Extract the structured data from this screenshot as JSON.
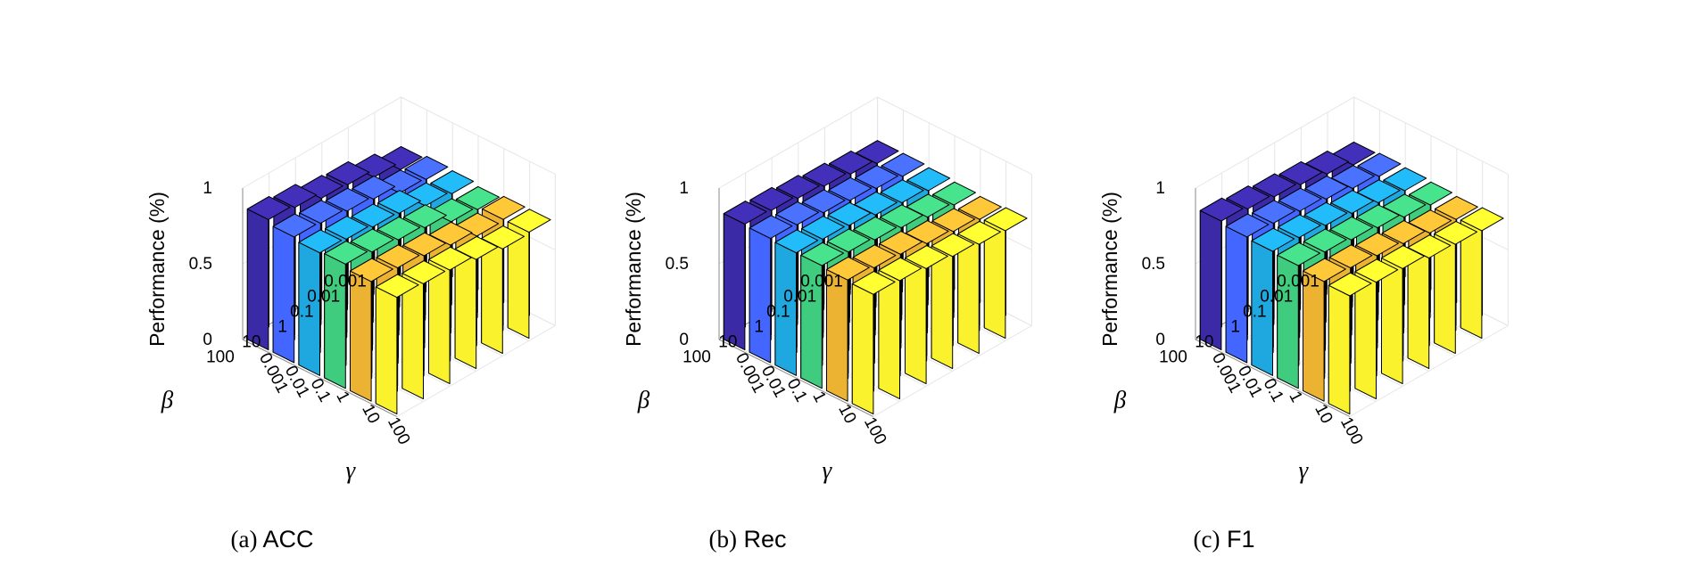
{
  "chart_data": [
    {
      "type": "bar3d",
      "caption_tag": "(a)",
      "caption_metric": "ACC",
      "zlabel": "Performance (%)",
      "zticks": [
        "0",
        "0.5",
        "1"
      ],
      "zlim": [
        0,
        1
      ],
      "x_axis_symbol": "γ",
      "y_axis_symbol": "β",
      "x_categories": [
        "0.001",
        "0.01",
        "0.1",
        "1",
        "10",
        "100"
      ],
      "y_categories": [
        "0.001",
        "0.01",
        "0.1",
        "1",
        "10",
        "100"
      ],
      "values": [
        [
          0.86,
          0.83,
          0.81,
          0.82,
          0.79,
          0.77
        ],
        [
          0.84,
          0.82,
          0.8,
          0.8,
          0.78,
          0.76
        ],
        [
          0.8,
          0.8,
          0.78,
          0.78,
          0.76,
          0.75
        ],
        [
          0.79,
          0.78,
          0.77,
          0.76,
          0.73,
          0.72
        ],
        [
          0.74,
          0.72,
          0.72,
          0.7,
          0.69,
          0.69
        ],
        [
          0.69,
          0.71,
          0.7,
          0.68,
          0.7,
          0.7
        ]
      ]
    },
    {
      "type": "bar3d",
      "caption_tag": "(b)",
      "caption_metric": "Rec",
      "zlabel": "Performance (%)",
      "zticks": [
        "0",
        "0.5",
        "1"
      ],
      "zlim": [
        0,
        1
      ],
      "x_axis_symbol": "γ",
      "y_axis_symbol": "β",
      "x_categories": [
        "0.001",
        "0.01",
        "0.1",
        "1",
        "10",
        "100"
      ],
      "y_categories": [
        "0.001",
        "0.01",
        "0.1",
        "1",
        "10",
        "100"
      ],
      "values": [
        [
          0.83,
          0.82,
          0.81,
          0.81,
          0.8,
          0.79
        ],
        [
          0.82,
          0.81,
          0.8,
          0.8,
          0.78,
          0.78
        ],
        [
          0.8,
          0.79,
          0.79,
          0.78,
          0.77,
          0.76
        ],
        [
          0.78,
          0.77,
          0.76,
          0.76,
          0.74,
          0.74
        ],
        [
          0.76,
          0.75,
          0.74,
          0.73,
          0.72,
          0.72
        ],
        [
          0.73,
          0.73,
          0.72,
          0.71,
          0.7,
          0.71
        ]
      ]
    },
    {
      "type": "bar3d",
      "caption_tag": "(c)",
      "caption_metric": "F1",
      "zlabel": "Performance (%)",
      "zticks": [
        "0",
        "0.5",
        "1"
      ],
      "zlim": [
        0,
        1
      ],
      "x_axis_symbol": "γ",
      "y_axis_symbol": "β",
      "x_categories": [
        "0.001",
        "0.01",
        "0.1",
        "1",
        "10",
        "100"
      ],
      "y_categories": [
        "0.001",
        "0.01",
        "0.1",
        "1",
        "10",
        "100"
      ],
      "values": [
        [
          0.85,
          0.83,
          0.82,
          0.81,
          0.79,
          0.78
        ],
        [
          0.83,
          0.82,
          0.81,
          0.8,
          0.78,
          0.77
        ],
        [
          0.81,
          0.8,
          0.79,
          0.78,
          0.76,
          0.76
        ],
        [
          0.79,
          0.78,
          0.77,
          0.76,
          0.74,
          0.73
        ],
        [
          0.76,
          0.75,
          0.74,
          0.73,
          0.71,
          0.72
        ],
        [
          0.72,
          0.73,
          0.72,
          0.71,
          0.7,
          0.71
        ]
      ]
    }
  ],
  "colors": {
    "gamma_bar_colors": [
      "#3b2aa6",
      "#4266ff",
      "#1fa8e0",
      "#3fcc7e",
      "#ecb333",
      "#faf22c"
    ],
    "axis": "#000000",
    "grid": "#e6e6e6"
  }
}
